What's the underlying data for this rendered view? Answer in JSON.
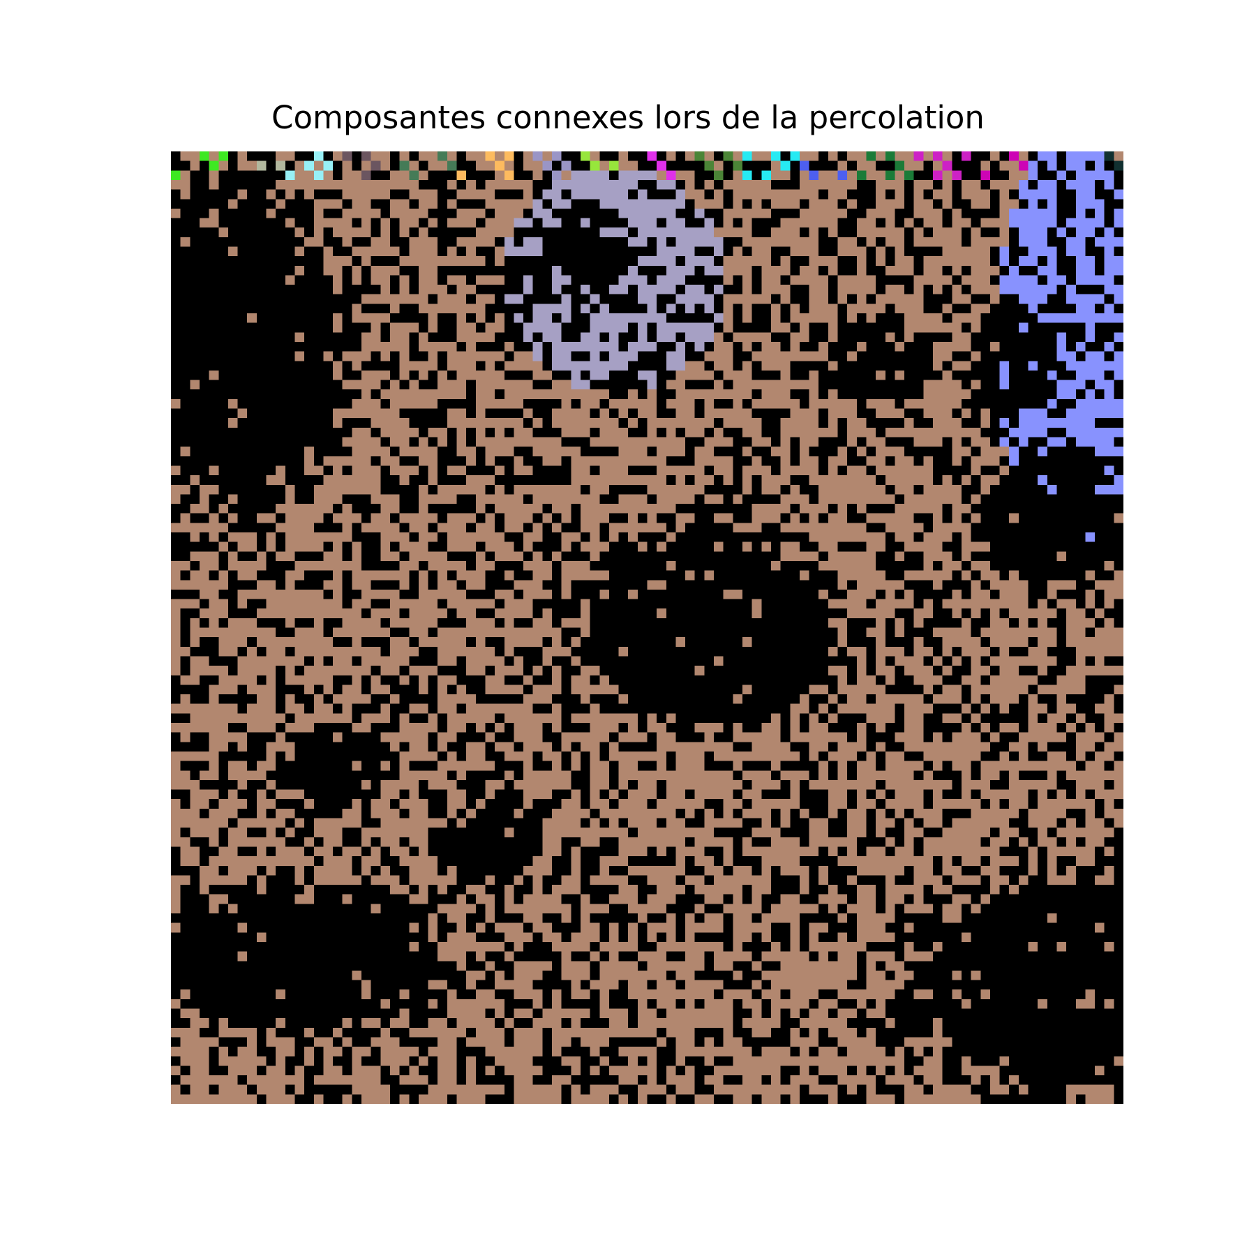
{
  "title": "Composantes connexes lors de la percolation",
  "grid": {
    "rows": 100,
    "cols": 100,
    "seed": 20240611,
    "open_probability": 0.62,
    "colors": {
      "background": "#000000",
      "main_cluster": "#b2876f",
      "lavender_cluster": "#a6a0c4",
      "periwinkle_cluster": "#8892fe",
      "top_clusters": [
        "#3ee822",
        "#b2b89e",
        "#97f0f6",
        "#6b5560",
        "#457b57",
        "#fdbb5f",
        "#9a95c6",
        "#97e63c",
        "#e030ea",
        "#4b8537",
        "#27eaf3",
        "#4d5ff0",
        "#1b7b38",
        "#cd21c5",
        "#cd04b5",
        "#2af2e4",
        "#113030"
      ]
    }
  }
}
